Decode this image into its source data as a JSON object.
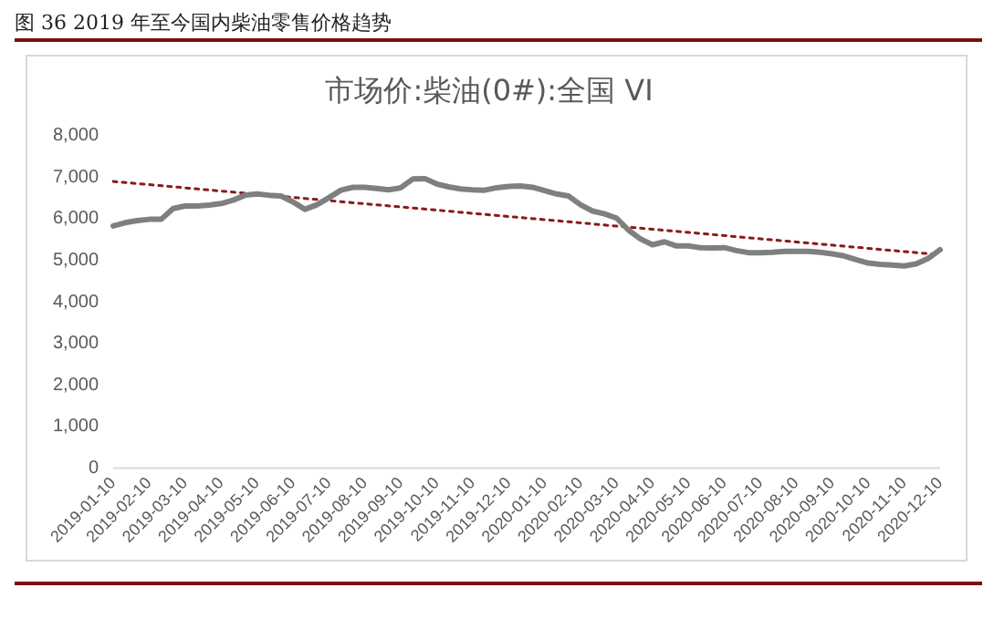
{
  "chart_data": {
    "type": "line",
    "title": "市场价:柴油(0#):全国 VI",
    "annotations": [
      "图 36 2019 年至今国内柴油零售价格趋势"
    ],
    "categories": [
      "2019-01-10",
      null,
      null,
      "2019-02-10",
      null,
      null,
      "2019-03-10",
      null,
      null,
      "2019-04-10",
      null,
      null,
      "2019-05-10",
      null,
      null,
      "2019-06-10",
      null,
      null,
      "2019-07-10",
      null,
      null,
      "2019-08-10",
      null,
      null,
      "2019-09-10",
      null,
      null,
      "2019-10-10",
      null,
      null,
      "2019-11-10",
      null,
      null,
      "2019-12-10",
      null,
      null,
      "2020-01-10",
      null,
      null,
      "2020-02-10",
      null,
      null,
      "2020-03-10",
      null,
      null,
      "2020-04-10",
      null,
      null,
      "2020-05-10",
      null,
      null,
      "2020-06-10",
      null,
      null,
      "2020-07-10",
      null,
      null,
      "2020-08-10",
      null,
      null,
      "2020-09-10",
      null,
      null,
      "2020-10-10",
      null,
      null,
      "2020-11-10",
      null,
      null,
      "2020-12-10"
    ],
    "series": [
      {
        "type": "line",
        "color": "#7f7f7f",
        "line_style": "solid",
        "values": [
          5820,
          5900,
          5950,
          5980,
          5980,
          6240,
          6300,
          6300,
          6320,
          6360,
          6440,
          6560,
          6590,
          6560,
          6540,
          6400,
          6220,
          6330,
          6500,
          6680,
          6750,
          6750,
          6720,
          6690,
          6740,
          6950,
          6960,
          6830,
          6760,
          6710,
          6690,
          6680,
          6740,
          6770,
          6780,
          6750,
          6670,
          6590,
          6540,
          6330,
          6180,
          6110,
          6010,
          5720,
          5510,
          5370,
          5440,
          5340,
          5340,
          5300,
          5290,
          5300,
          5230,
          5180,
          5180,
          5190,
          5210,
          5210,
          5210,
          5190,
          5150,
          5100,
          5010,
          4930,
          4900,
          4880,
          4860,
          4910,
          5040,
          5250
        ]
      },
      {
        "type": "line",
        "color": "#8b1a1a",
        "line_style": "dotted",
        "values": [
          6890,
          null,
          null,
          null,
          null,
          null,
          null,
          null,
          null,
          null,
          null,
          null,
          null,
          null,
          null,
          null,
          null,
          null,
          null,
          null,
          null,
          null,
          null,
          null,
          null,
          null,
          null,
          null,
          null,
          null,
          null,
          null,
          null,
          null,
          null,
          null,
          null,
          null,
          null,
          null,
          null,
          null,
          null,
          null,
          null,
          null,
          null,
          null,
          null,
          null,
          null,
          null,
          null,
          null,
          null,
          null,
          null,
          null,
          null,
          null,
          null,
          null,
          null,
          null,
          null,
          null,
          null,
          null,
          null,
          5130
        ]
      }
    ],
    "ylim": [
      0,
      8000
    ],
    "yticks": [
      {
        "value": 0,
        "label": "0"
      },
      {
        "value": 1000,
        "label": "1,000"
      },
      {
        "value": 2000,
        "label": "2,000"
      },
      {
        "value": 3000,
        "label": "3,000"
      },
      {
        "value": 4000,
        "label": "4,000"
      },
      {
        "value": 5000,
        "label": "5,000"
      },
      {
        "value": 6000,
        "label": "6,000"
      },
      {
        "value": 7000,
        "label": "7,000"
      },
      {
        "value": 8000,
        "label": "8,000"
      }
    ],
    "grid": false,
    "legend": false,
    "marker": "none"
  }
}
